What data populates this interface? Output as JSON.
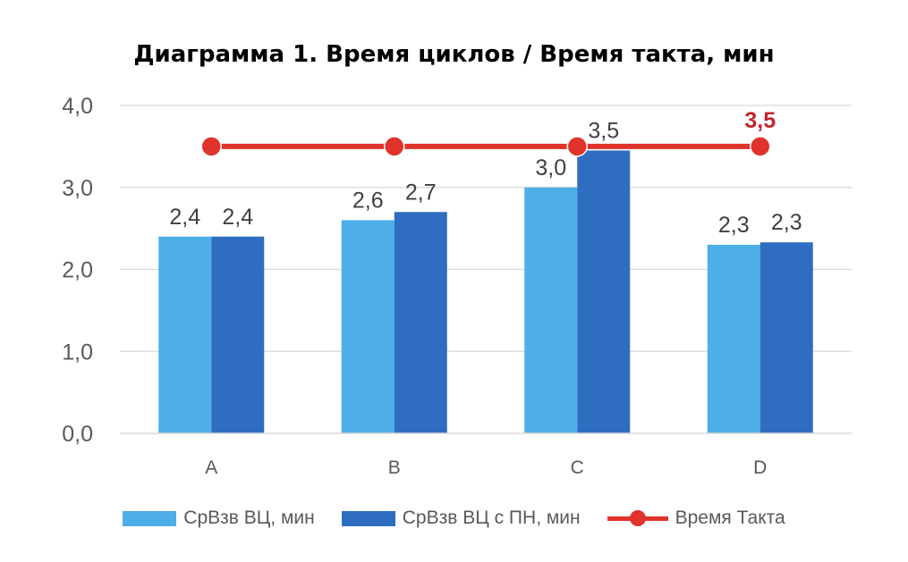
{
  "chart_data": {
    "type": "bar",
    "title": "Диаграмма 1. Время циклов / Время такта, мин",
    "categories": [
      "A",
      "B",
      "C",
      "D"
    ],
    "series": [
      {
        "name": "СрВзв ВЦ, мин",
        "kind": "bar",
        "color": "#4eaee8",
        "values": [
          2.4,
          2.6,
          3.0,
          2.3
        ],
        "labels": [
          "2,4",
          "2,6",
          "3,0",
          "2,3"
        ]
      },
      {
        "name": "СрВзв ВЦ с ПН, мин",
        "kind": "bar",
        "color": "#2e6dbf",
        "values": [
          2.4,
          2.7,
          3.45,
          2.33
        ],
        "labels": [
          "2,4",
          "2,7",
          "3,5",
          "2,3"
        ]
      },
      {
        "name": "Время Такта",
        "kind": "line",
        "color": "#e0332b",
        "values": [
          3.5,
          3.5,
          3.5,
          3.5
        ],
        "last_label": "3,5",
        "last_label_color": "#c0272d"
      }
    ],
    "ylim": [
      0,
      4
    ],
    "yticks": [
      0,
      1,
      2,
      3,
      4
    ],
    "ytick_labels": [
      "0,0",
      "1,0",
      "2,0",
      "3,0",
      "4,0"
    ],
    "xlabel": "",
    "ylabel": "",
    "grid": true,
    "gridline_color": "#d9d9d9",
    "legend_position": "bottom"
  }
}
